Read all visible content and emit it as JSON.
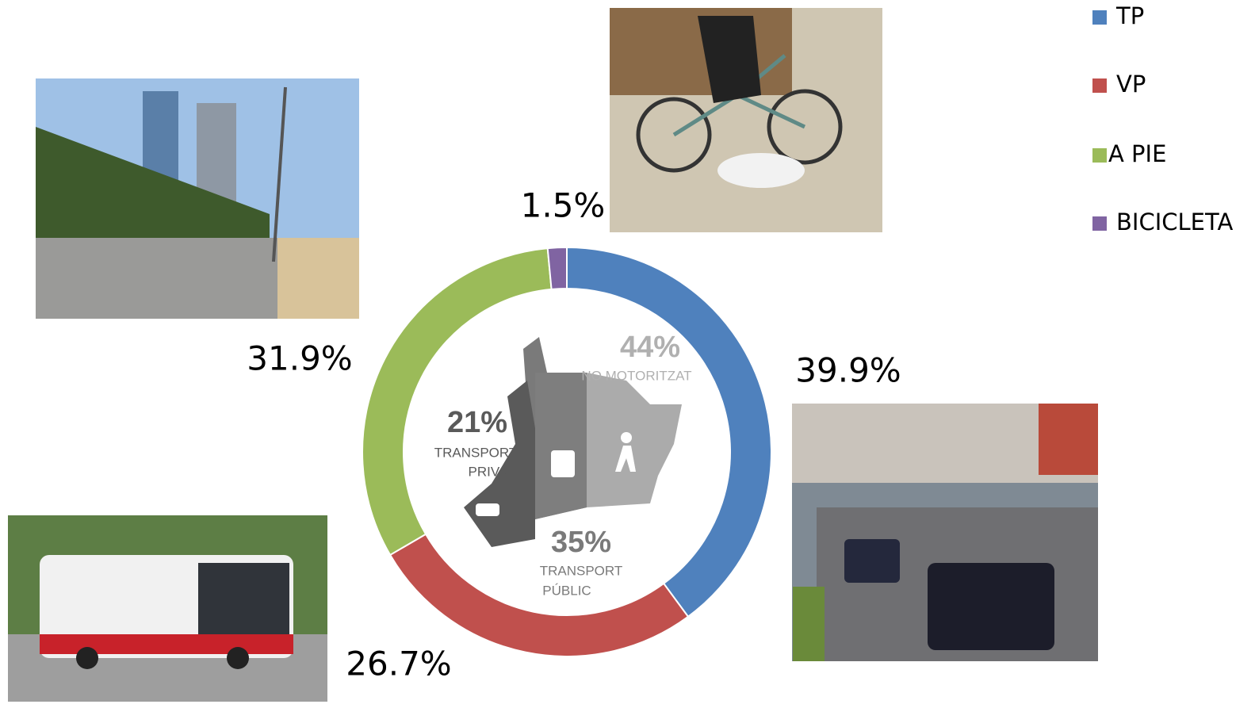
{
  "chart_data": {
    "type": "donut",
    "categories": [
      "TP",
      "VP",
      "A PIE",
      "BICICLETA"
    ],
    "values": [
      39.9,
      26.7,
      31.9,
      1.5
    ],
    "value_labels": [
      "39.9%",
      "26.7%",
      "31.9%",
      "1.5%"
    ],
    "colors": [
      "#4f81bd",
      "#c0504d",
      "#9bbb59",
      "#8064a2"
    ],
    "legend": "top-right",
    "annotations": [
      "44%",
      "NO MOTORITZAT",
      "21%",
      "TRANSPORT",
      "PRIVAT",
      "35%",
      "TRANSPORT",
      "PÚBLIC"
    ]
  }
}
